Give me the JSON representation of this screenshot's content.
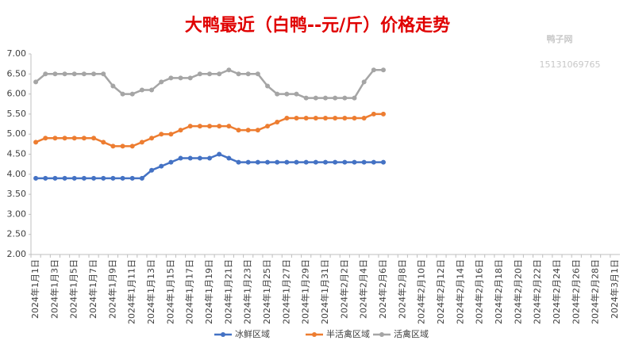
{
  "chart_data": {
    "type": "line",
    "title": "大鸭最近（白鸭--元/斤）价格走势",
    "watermark": [
      "鸭子网",
      "15131069765"
    ],
    "categories": [
      "2024年1月1日",
      null,
      "2024年1月3日",
      null,
      "2024年1月5日",
      null,
      "2024年1月7日",
      null,
      "2024年1月9日",
      null,
      "2024年1月11日",
      null,
      "2024年1月13日",
      null,
      "2024年1月15日",
      null,
      "2024年1月17日",
      null,
      "2024年1月19日",
      null,
      "2024年1月21日",
      null,
      "2024年1月23日",
      null,
      "2024年1月25日",
      null,
      "2024年1月27日",
      null,
      "2024年1月29日",
      null,
      "2024年1月31日",
      null,
      "2024年2月2日",
      null,
      "2024年2月4日",
      null,
      "2024年2月6日",
      null,
      "2024年2月8日",
      null,
      "2024年2月10日",
      null,
      "2024年2月12日",
      null,
      "2024年2月14日",
      null,
      "2024年2月16日",
      null,
      "2024年2月18日",
      null,
      "2024年2月20日",
      null,
      "2024年2月22日",
      null,
      "2024年2月24日",
      null,
      "2024年2月26日",
      null,
      "2024年2月28日",
      null,
      "2024年3月1日"
    ],
    "series": [
      {
        "name": "冰鲜区域",
        "color": "#4472c4",
        "values": [
          3.9,
          3.9,
          3.9,
          3.9,
          3.9,
          3.9,
          3.9,
          3.9,
          3.9,
          3.9,
          3.9,
          3.9,
          4.1,
          4.2,
          4.3,
          4.4,
          4.4,
          4.4,
          4.4,
          4.5,
          4.4,
          4.3,
          4.3,
          4.3,
          4.3,
          4.3,
          4.3,
          4.3,
          4.3,
          4.3,
          4.3,
          4.3,
          4.3,
          4.3,
          4.3,
          4.3,
          4.3,
          null,
          null,
          null,
          null,
          null,
          null,
          null,
          null,
          null,
          null,
          null,
          null,
          null,
          null,
          null,
          null,
          null,
          null,
          null,
          null,
          null,
          null,
          null,
          null
        ]
      },
      {
        "name": "半活禽区域",
        "color": "#ed7d31",
        "values": [
          4.8,
          4.9,
          4.9,
          4.9,
          4.9,
          4.9,
          4.9,
          4.8,
          4.7,
          4.7,
          4.7,
          4.8,
          4.9,
          5.0,
          5.0,
          5.1,
          5.2,
          5.2,
          5.2,
          5.2,
          5.2,
          5.1,
          5.1,
          5.1,
          5.2,
          5.3,
          5.4,
          5.4,
          5.4,
          5.4,
          5.4,
          5.4,
          5.4,
          5.4,
          5.4,
          5.5,
          5.5,
          null,
          null,
          null,
          null,
          null,
          null,
          null,
          null,
          null,
          null,
          null,
          null,
          null,
          null,
          null,
          null,
          null,
          null,
          null,
          null,
          null,
          null,
          null,
          null
        ]
      },
      {
        "name": "活禽区域",
        "color": "#a5a5a5",
        "values": [
          6.3,
          6.5,
          6.5,
          6.5,
          6.5,
          6.5,
          6.5,
          6.5,
          6.2,
          6.0,
          6.0,
          6.1,
          6.1,
          6.3,
          6.4,
          6.4,
          6.4,
          6.5,
          6.5,
          6.5,
          6.6,
          6.5,
          6.5,
          6.5,
          6.2,
          6.0,
          6.0,
          6.0,
          5.9,
          5.9,
          5.9,
          5.9,
          5.9,
          5.9,
          6.3,
          6.6,
          6.6,
          null,
          null,
          null,
          null,
          null,
          null,
          null,
          null,
          null,
          null,
          null,
          null,
          null,
          null,
          null,
          null,
          null,
          null,
          null,
          null,
          null,
          null,
          null,
          null
        ]
      }
    ],
    "ylim": [
      2,
      7
    ],
    "yticks": [
      {
        "value": 2,
        "label": "2.00"
      },
      {
        "value": 2.5,
        "label": "2.50"
      },
      {
        "value": 3,
        "label": "3.00"
      },
      {
        "value": 3.5,
        "label": "3.50"
      },
      {
        "value": 4,
        "label": "4.00"
      },
      {
        "value": 4.5,
        "label": "4.50"
      },
      {
        "value": 5,
        "label": "5.00"
      },
      {
        "value": 5.5,
        "label": "5.50"
      },
      {
        "value": 6,
        "label": "6.00"
      },
      {
        "value": 6.5,
        "label": "6.50"
      },
      {
        "value": 7,
        "label": "7.00"
      }
    ],
    "grid": false,
    "legend": "bottom"
  }
}
